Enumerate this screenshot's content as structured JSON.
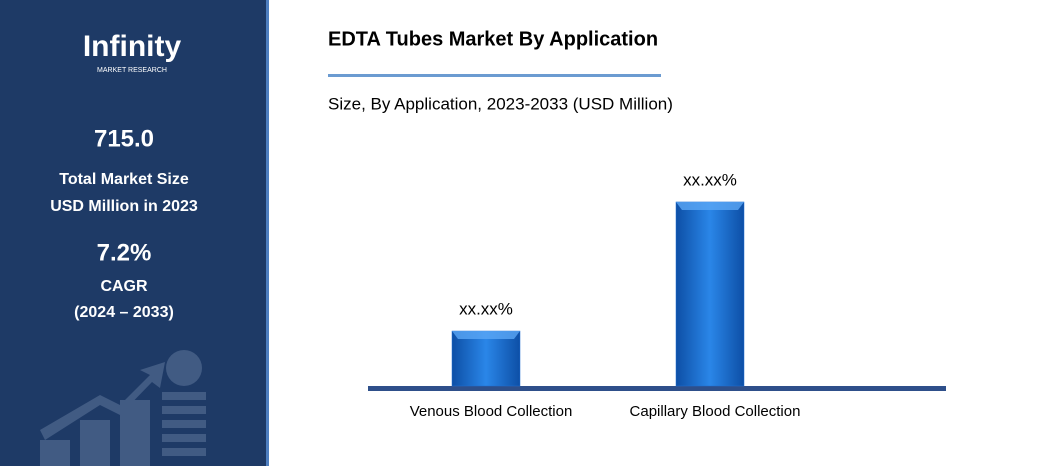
{
  "sidebar": {
    "logo": "Infinity",
    "logo_sub": "MARKET RESEARCH",
    "market_size": "715.0",
    "market_size_label_1": "Total Market Size",
    "market_size_label_2": "USD Million in 2023",
    "cagr": "7.2%",
    "cagr_label": "CAGR",
    "cagr_period": "(2024 – 2033)"
  },
  "chart_data": {
    "type": "bar",
    "title": "EDTA Tubes Market By Application",
    "subtitle": "Size, By Application, 2023-2033 (USD Million)",
    "categories": [
      "Venous Blood Collection",
      "Capillary Blood Collection"
    ],
    "values": [
      23,
      77
    ],
    "value_labels": [
      "xx.xx%",
      "xx.xx%"
    ],
    "color": "#1f6fd1"
  }
}
